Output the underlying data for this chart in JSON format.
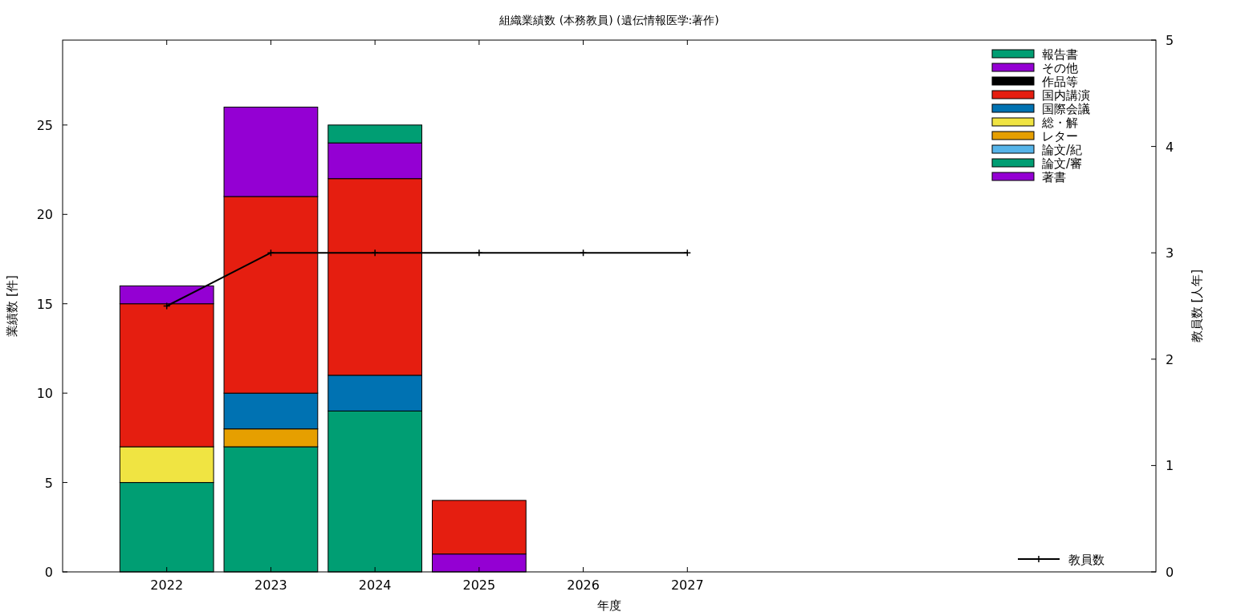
{
  "chart_data": {
    "type": "bar",
    "stacked": true,
    "title": "組織業績数 (本務教員) (遺伝情報医学:著作)",
    "xlabel": "年度",
    "ylabel": "業績数 [件]",
    "y2label": "教員数 [人年]",
    "x": [
      2022,
      2023,
      2024,
      2025,
      2026,
      2027
    ],
    "xlim": [
      2021,
      2031.5
    ],
    "xticks": [
      2022,
      2023,
      2024,
      2025,
      2026,
      2027
    ],
    "ylim": [
      0,
      29.75
    ],
    "yticks": [
      0,
      5,
      10,
      15,
      20,
      25
    ],
    "y2lim": [
      0,
      5
    ],
    "y2ticks": [
      0,
      1,
      2,
      3,
      4,
      5
    ],
    "legend": "right",
    "grid": false,
    "series": [
      {
        "name": "著書",
        "color": "#9400d3",
        "values": [
          0,
          0,
          0,
          1,
          0,
          0
        ]
      },
      {
        "name": "論文/審",
        "color": "#009e73",
        "values": [
          5,
          7,
          9,
          0,
          0,
          0
        ]
      },
      {
        "name": "論文/紀",
        "color": "#56b4e9",
        "values": [
          0,
          0,
          0,
          0,
          0,
          0
        ]
      },
      {
        "name": "レター",
        "color": "#e69f00",
        "values": [
          0,
          1,
          0,
          0,
          0,
          0
        ]
      },
      {
        "name": "総・解",
        "color": "#f0e442",
        "values": [
          2,
          0,
          0,
          0,
          0,
          0
        ]
      },
      {
        "name": "国際会議",
        "color": "#0072b2",
        "values": [
          0,
          2,
          2,
          0,
          0,
          0
        ]
      },
      {
        "name": "国内講演",
        "color": "#e51e10",
        "values": [
          8,
          11,
          11,
          3,
          0,
          0
        ]
      },
      {
        "name": "作品等",
        "color": "#000000",
        "values": [
          0,
          0,
          0,
          0,
          0,
          0
        ]
      },
      {
        "name": "その他",
        "color": "#9400d3",
        "values": [
          1,
          5,
          2,
          0,
          0,
          0
        ]
      },
      {
        "name": "報告書",
        "color": "#009e73",
        "values": [
          0,
          0,
          1,
          0,
          0,
          0
        ]
      },
      {
        "name": "教員数",
        "type": "line",
        "axis": "y2",
        "color": "#000000",
        "marker": "cross",
        "line_style": "solid",
        "values": [
          2.5,
          3,
          3,
          3,
          3,
          3
        ]
      }
    ]
  }
}
